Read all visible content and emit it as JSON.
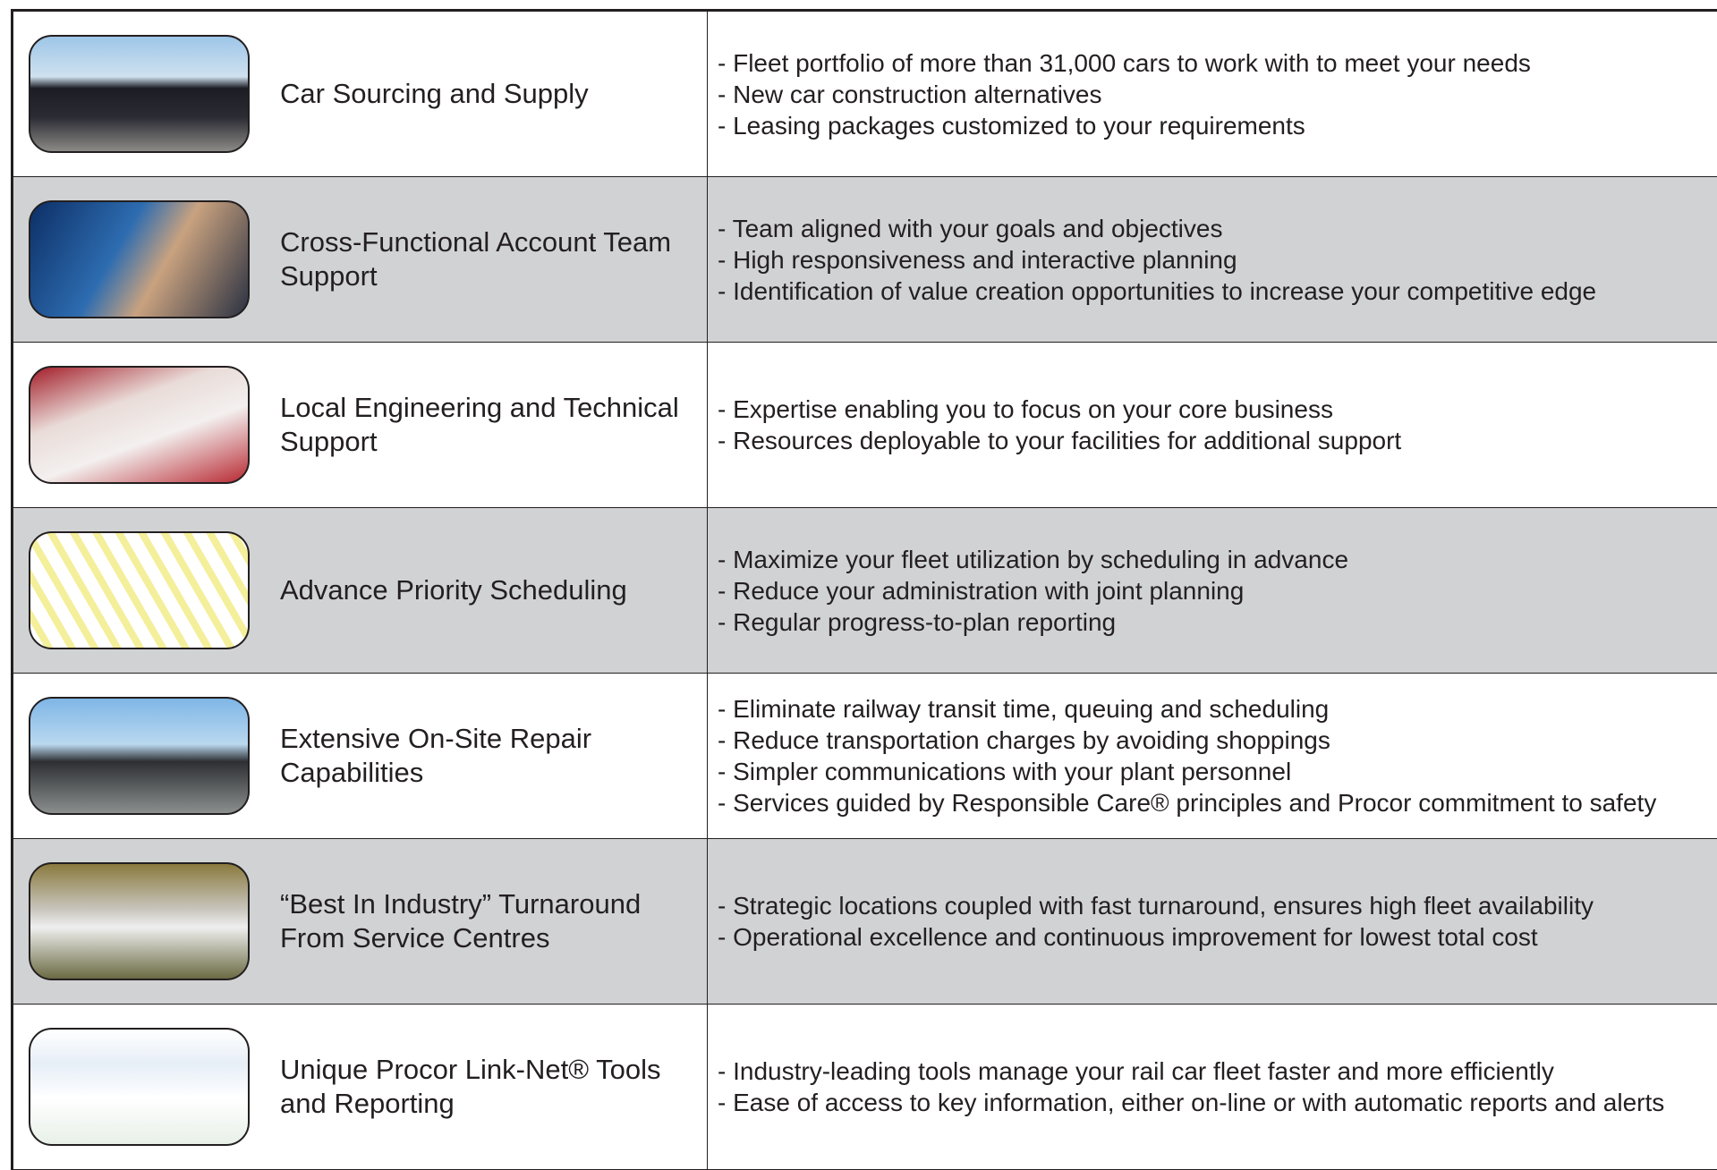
{
  "table": {
    "rows": [
      {
        "title": "Car Sourcing and Supply",
        "bullets": [
          "- Fleet portfolio of more than 31,000 cars to work with to meet your needs",
          "- New car construction alternatives",
          "- Leasing packages customized to your requirements"
        ]
      },
      {
        "title": "Cross-Functional Account Team Support",
        "bullets": [
          "- Team aligned with your goals and objectives",
          "- High responsiveness and interactive planning",
          "- Identification of value creation opportunities to increase your competitive edge"
        ]
      },
      {
        "title": "Local Engineering and Technical Support",
        "bullets": [
          "- Expertise enabling you to focus on your core business",
          "- Resources deployable to your facilities for additional support"
        ]
      },
      {
        "title": "Advance Priority Scheduling",
        "bullets": [
          "- Maximize your fleet utilization by scheduling in advance",
          "- Reduce your administration with joint planning",
          "- Regular progress-to-plan reporting"
        ]
      },
      {
        "title": "Extensive On-Site Repair Capabilities",
        "bullets": [
          "- Eliminate railway transit time, queuing and scheduling",
          "- Reduce transportation charges by avoiding shoppings",
          "- Simpler communications with your plant personnel",
          "- Services guided by Responsible Care® principles and Procor commitment to safety"
        ]
      },
      {
        "title": "“Best In Industry” Turnaround From Service Centres",
        "bullets": [
          "- Strategic locations coupled with fast turnaround, ensures high fleet availability",
          "- Operational excellence and continuous improvement for lowest total cost"
        ]
      },
      {
        "title": "Unique Procor Link-Net® Tools and Reporting",
        "bullets": [
          "- Industry-leading tools manage your rail car fleet faster and more efficiently",
          "- Ease of access to key information, either on-line or with automatic reports and alerts"
        ]
      }
    ]
  }
}
